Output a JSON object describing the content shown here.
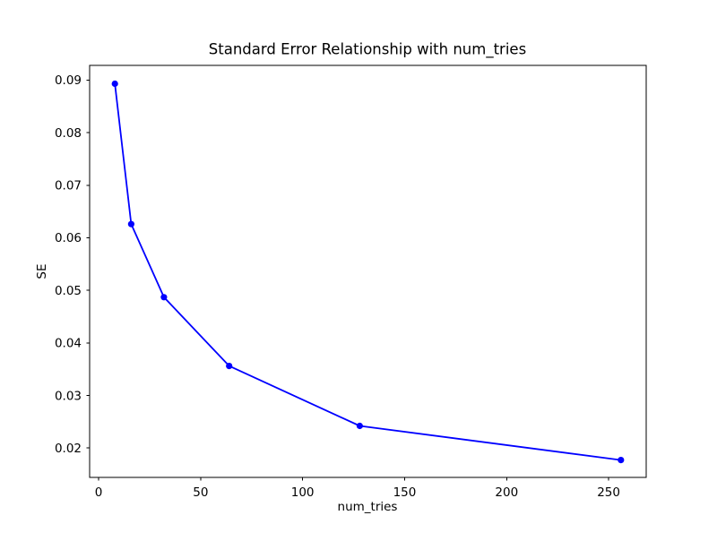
{
  "chart_data": {
    "type": "line",
    "title": "Standard Error Relationship with num_tries",
    "xlabel": "num_tries",
    "ylabel": "SE",
    "x": [
      8,
      16,
      32,
      64,
      128,
      256
    ],
    "series": [
      {
        "name": "SE",
        "values": [
          0.0893,
          0.0626,
          0.0487,
          0.0356,
          0.0242,
          0.0177
        ]
      }
    ],
    "x_ticks": [
      0,
      50,
      100,
      150,
      200,
      250
    ],
    "y_ticks": [
      0.02,
      0.03,
      0.04,
      0.05,
      0.06,
      0.07,
      0.08,
      0.09
    ],
    "xlim": [
      -4.4,
      268.4
    ],
    "ylim": [
      0.0144,
      0.0928
    ],
    "grid": false,
    "legend_position": "none",
    "line_color": "#0000ff",
    "marker": "circle",
    "marker_color": "#0000ff",
    "axis_color": "#000000",
    "background_color": "#ffffff"
  }
}
